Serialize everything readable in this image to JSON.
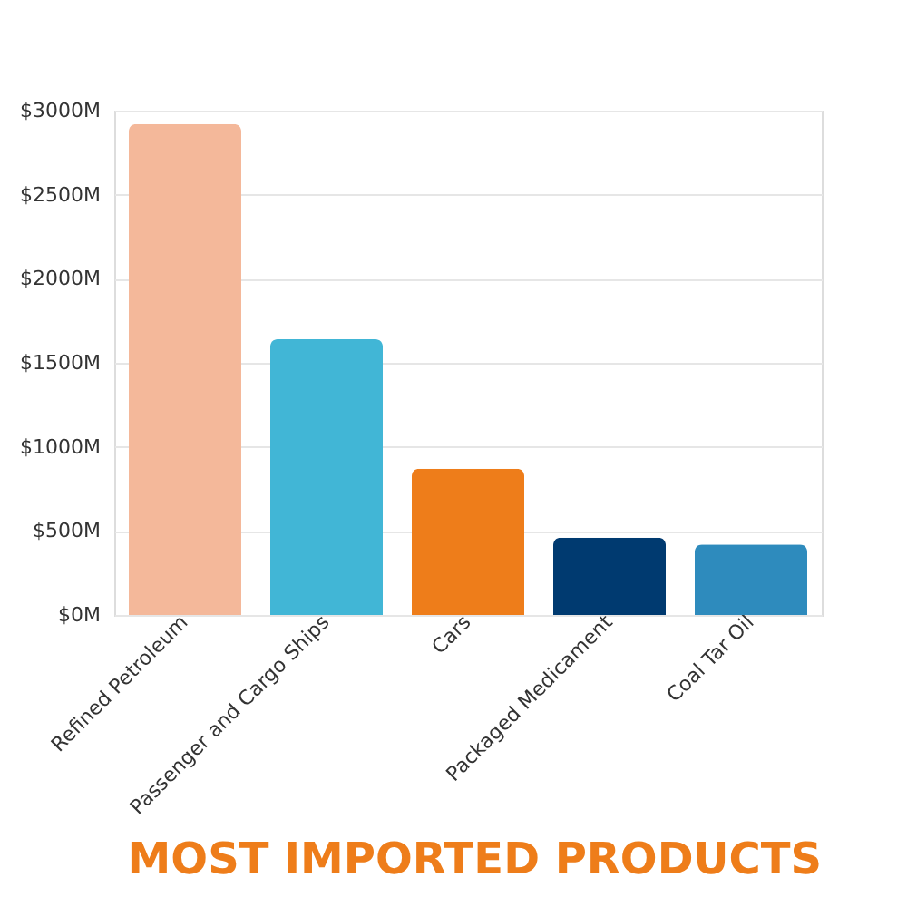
{
  "chart_data": {
    "type": "bar",
    "title": "MOST IMPORTED PRODUCTS",
    "categories": [
      "Refined Petroleum",
      "Passenger and Cargo Ships",
      "Cars",
      "Packaged Medicament",
      "Coal Tar Oil"
    ],
    "values": [
      2920,
      1640,
      870,
      460,
      420
    ],
    "colors": [
      "#f4b89a",
      "#41b6d6",
      "#ee7d1a",
      "#003a70",
      "#2e8bbd"
    ],
    "ylim": [
      0,
      3000
    ],
    "yticks": [
      {
        "value": 0,
        "label": "$0M"
      },
      {
        "value": 500,
        "label": "$500M"
      },
      {
        "value": 1000,
        "label": "$1000M"
      },
      {
        "value": 1500,
        "label": "$1500M"
      },
      {
        "value": 2000,
        "label": "$2000M"
      },
      {
        "value": 2500,
        "label": "$2500M"
      },
      {
        "value": 3000,
        "label": "$3000M"
      }
    ],
    "grid": "y"
  }
}
